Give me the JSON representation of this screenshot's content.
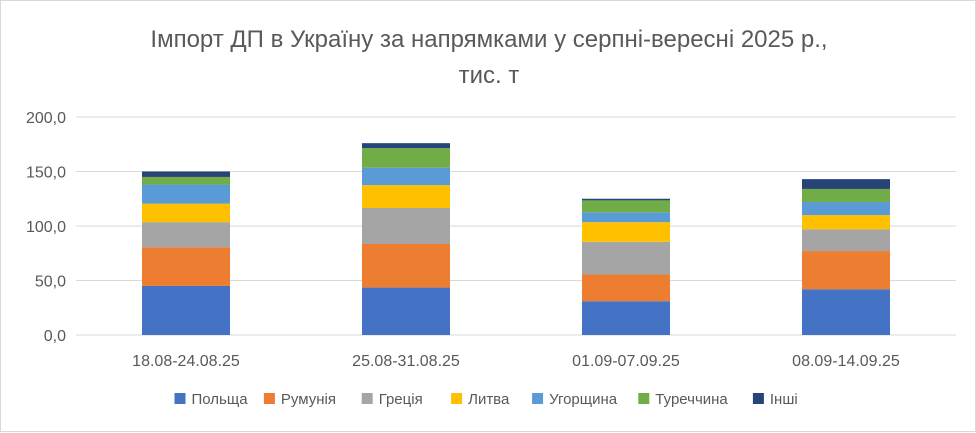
{
  "chart_data": {
    "type": "stacked-bar",
    "title_lines": [
      "Імпорт ДП в Україну за напрямками у серпні-вересні 2025 р.,",
      "тис. т"
    ],
    "categories": [
      "18.08-24.08.25",
      "25.08-31.08.25",
      "01.09-07.09.25",
      "08.09-14.09.25"
    ],
    "ylim": [
      0,
      200
    ],
    "yticks": [
      "0,0",
      "50,0",
      "100,0",
      "150,0",
      "200,0"
    ],
    "grid": true,
    "legend_position": "bottom",
    "series": [
      {
        "name": "Польща",
        "color": "#4472C4",
        "values": [
          45,
          43.5,
          31,
          42
        ]
      },
      {
        "name": "Румунія",
        "color": "#ED7D31",
        "values": [
          35.5,
          40,
          24.5,
          35
        ]
      },
      {
        "name": "Греція",
        "color": "#A5A5A5",
        "values": [
          23,
          33,
          30,
          20
        ]
      },
      {
        "name": "Литва",
        "color": "#FFC000",
        "values": [
          17,
          21,
          18,
          13
        ]
      },
      {
        "name": "Угорщина",
        "color": "#5B9BD5",
        "values": [
          17.5,
          16,
          9,
          12
        ]
      },
      {
        "name": "Туреччина",
        "color": "#70AD47",
        "values": [
          7,
          18,
          11,
          12
        ]
      },
      {
        "name": "Інші",
        "color": "#264478",
        "values": [
          5,
          4.5,
          1.5,
          9
        ]
      }
    ]
  }
}
